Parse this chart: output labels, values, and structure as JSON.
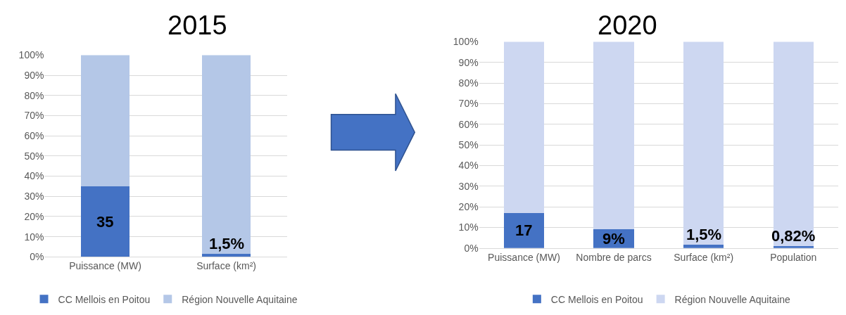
{
  "chart_data": [
    {
      "type": "bar",
      "title": "2015",
      "stacked": true,
      "categories": [
        "Puissance (MW)",
        "Surface (km²)"
      ],
      "series": [
        {
          "name": "CC Mellois en Poitou",
          "color": "#4472c4",
          "values": [
            35,
            1.5
          ],
          "value_labels": [
            "35",
            "1,5%"
          ]
        },
        {
          "name": "Région Nouvelle Aquitaine",
          "color": "#b4c7e7",
          "values": [
            65,
            98.5
          ]
        }
      ],
      "ylim": [
        0,
        100
      ],
      "yticks": [
        {
          "value": 0,
          "label": "0%"
        },
        {
          "value": 10,
          "label": "10%"
        },
        {
          "value": 20,
          "label": "20%"
        },
        {
          "value": 30,
          "label": "30%"
        },
        {
          "value": 40,
          "label": "40%"
        },
        {
          "value": 50,
          "label": "50%"
        },
        {
          "value": 60,
          "label": "60%"
        },
        {
          "value": 70,
          "label": "70%"
        },
        {
          "value": 80,
          "label": "80%"
        },
        {
          "value": 90,
          "label": "90%"
        },
        {
          "value": 100,
          "label": "100%"
        }
      ],
      "grid": "y",
      "legend": "bottom"
    },
    {
      "type": "bar",
      "title": "2020",
      "stacked": true,
      "categories": [
        "Puissance (MW)",
        "Nombre de parcs",
        "Surface (km²)",
        "Population"
      ],
      "series": [
        {
          "name": "CC Mellois en Poitou",
          "color": "#4472c4",
          "values": [
            17,
            9,
            1.5,
            0.82
          ],
          "value_labels": [
            "17",
            "9%",
            "1,5%",
            "0,82%"
          ]
        },
        {
          "name": "Région Nouvelle Aquitaine",
          "color": "#cdd7f1",
          "values": [
            83,
            91,
            98.5,
            99.18
          ]
        }
      ],
      "ylim": [
        0,
        100
      ],
      "yticks": [
        {
          "value": 0,
          "label": "0%"
        },
        {
          "value": 10,
          "label": "10%"
        },
        {
          "value": 20,
          "label": "20%"
        },
        {
          "value": 30,
          "label": "30%"
        },
        {
          "value": 40,
          "label": "40%"
        },
        {
          "value": 50,
          "label": "50%"
        },
        {
          "value": 60,
          "label": "60%"
        },
        {
          "value": 70,
          "label": "70%"
        },
        {
          "value": 80,
          "label": "80%"
        },
        {
          "value": 90,
          "label": "90%"
        },
        {
          "value": 100,
          "label": "100%"
        }
      ],
      "grid": "y",
      "legend": "bottom"
    }
  ]
}
